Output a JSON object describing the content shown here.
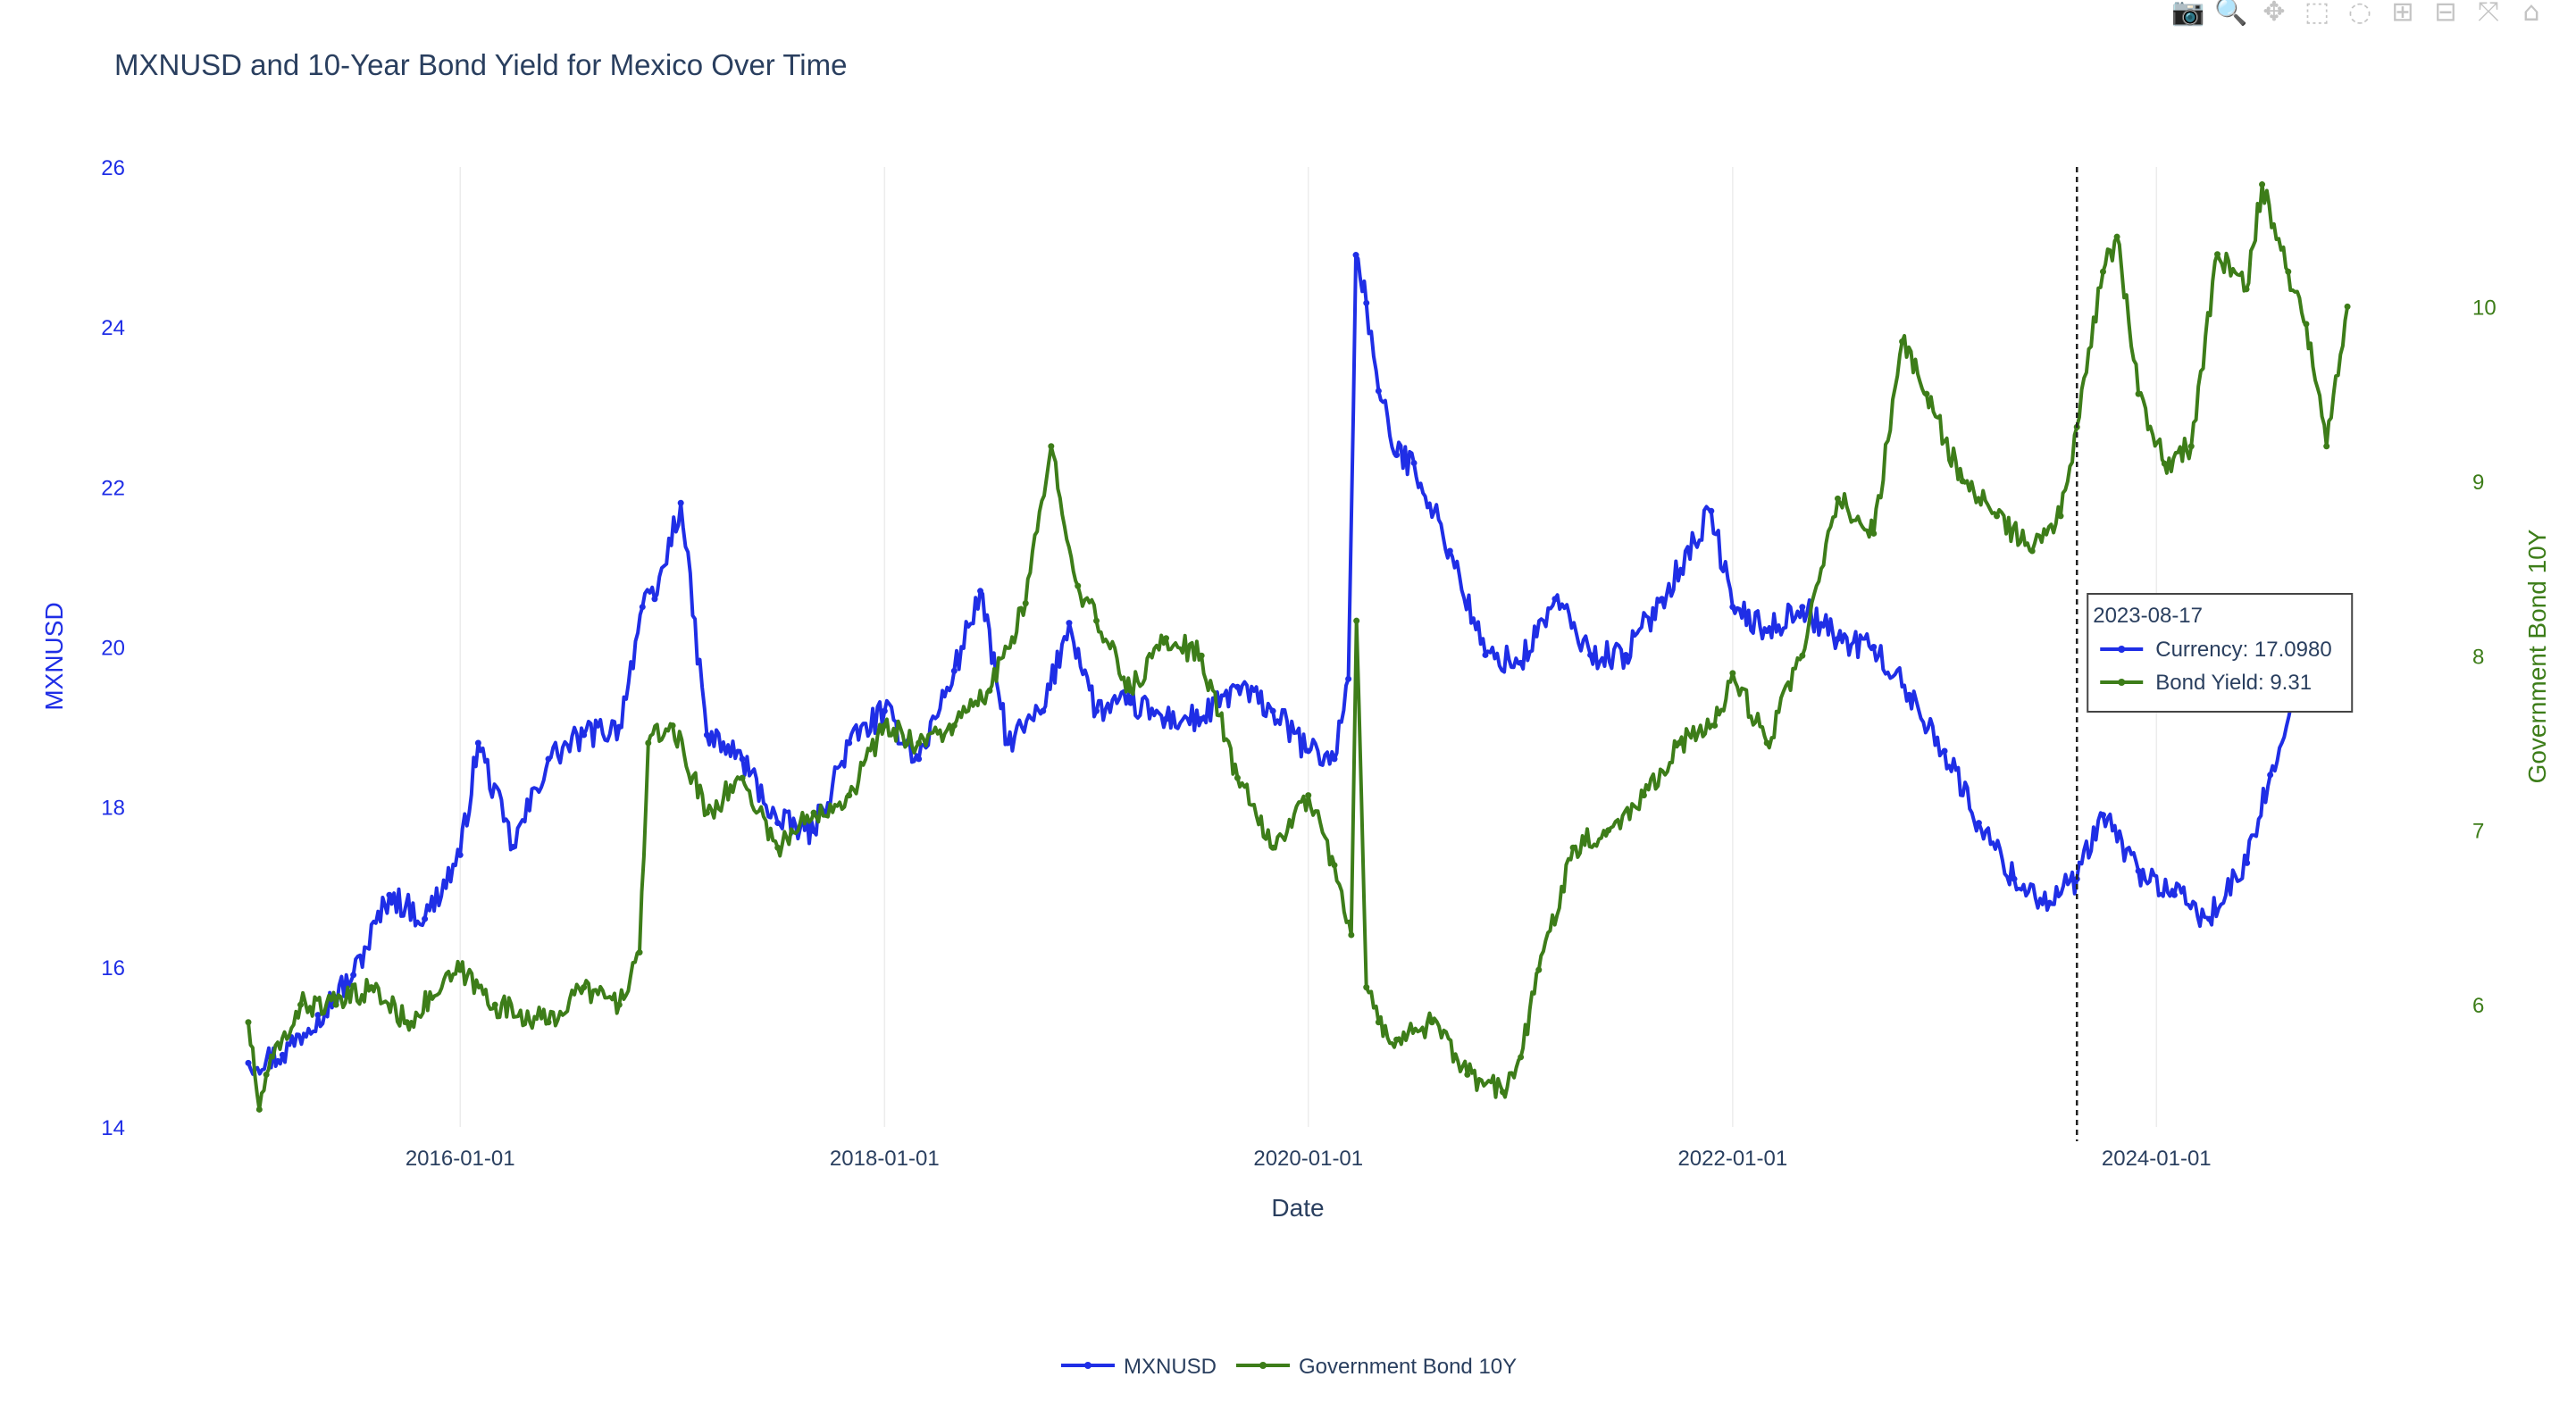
{
  "modebar": [
    {
      "icon": "camera-icon",
      "glyph": "📷"
    },
    {
      "icon": "zoom-icon",
      "glyph": "🔍"
    },
    {
      "icon": "pan-icon",
      "glyph": "✥"
    },
    {
      "icon": "box-select-icon",
      "glyph": "⬚"
    },
    {
      "icon": "lasso-select-icon",
      "glyph": "◌"
    },
    {
      "icon": "zoom-in-icon",
      "glyph": "⊞"
    },
    {
      "icon": "zoom-out-icon",
      "glyph": "⊟"
    },
    {
      "icon": "autoscale-icon",
      "glyph": "⤧"
    },
    {
      "icon": "reset-axes-icon",
      "glyph": "⌂"
    }
  ],
  "chart_data": {
    "type": "line",
    "title": "MXNUSD and 10-Year Bond Yield for Mexico Over Time",
    "xlabel": "Date",
    "ylabel": "MXNUSD",
    "y2label": "Government Bond 10Y",
    "x_ticks": [
      "2016-01-01",
      "2018-01-01",
      "2020-01-01",
      "2022-01-01",
      "2024-01-01"
    ],
    "xlim": [
      "2015-01-01",
      "2024-12-01"
    ],
    "ylim": [
      14,
      26
    ],
    "y_ticks": [
      14,
      16,
      18,
      20,
      22,
      24,
      26
    ],
    "y2lim": [
      5.3,
      10.8
    ],
    "y2_ticks": [
      6,
      7,
      8,
      9,
      10
    ],
    "grid": true,
    "legend_position": "bottom-center",
    "series": [
      {
        "name": "MXNUSD",
        "axis": "y",
        "color": "#1f2ee6",
        "x": [
          "2015-01-01",
          "2015-03-01",
          "2015-05-01",
          "2015-07-01",
          "2015-09-01",
          "2015-11-01",
          "2016-01-01",
          "2016-02-01",
          "2016-04-01",
          "2016-06-01",
          "2016-08-01",
          "2016-10-01",
          "2016-11-10",
          "2016-12-01",
          "2017-01-15",
          "2017-03-01",
          "2017-05-01",
          "2017-07-01",
          "2017-09-01",
          "2017-11-01",
          "2018-01-01",
          "2018-03-01",
          "2018-05-01",
          "2018-06-15",
          "2018-08-01",
          "2018-10-01",
          "2018-11-15",
          "2019-01-01",
          "2019-03-01",
          "2019-05-01",
          "2019-07-01",
          "2019-09-01",
          "2019-11-01",
          "2020-01-01",
          "2020-02-15",
          "2020-03-10",
          "2020-03-23",
          "2020-04-10",
          "2020-05-01",
          "2020-06-01",
          "2020-07-01",
          "2020-09-01",
          "2020-11-01",
          "2021-01-01",
          "2021-03-01",
          "2021-05-01",
          "2021-07-01",
          "2021-09-01",
          "2021-11-25",
          "2022-01-01",
          "2022-03-01",
          "2022-05-01",
          "2022-07-01",
          "2022-09-01",
          "2022-11-01",
          "2023-01-01",
          "2023-03-01",
          "2023-05-01",
          "2023-07-01",
          "2023-08-17",
          "2023-10-01",
          "2023-12-01",
          "2024-02-01",
          "2024-04-01",
          "2024-06-05",
          "2024-07-15",
          "2024-09-01",
          "2024-10-15",
          "2024-11-15"
        ],
        "y": [
          14.8,
          14.9,
          15.4,
          15.9,
          16.9,
          16.6,
          17.4,
          18.8,
          17.5,
          18.6,
          18.9,
          19.0,
          20.5,
          20.6,
          21.8,
          18.9,
          18.6,
          17.8,
          17.7,
          18.8,
          19.2,
          18.6,
          19.7,
          20.7,
          18.8,
          19.2,
          20.3,
          19.2,
          19.3,
          19.1,
          19.1,
          19.5,
          19.2,
          18.7,
          18.6,
          19.6,
          24.9,
          24.3,
          23.2,
          22.4,
          22.3,
          21.2,
          19.9,
          19.8,
          20.6,
          19.9,
          19.9,
          20.6,
          21.7,
          20.5,
          20.2,
          20.5,
          20.1,
          20.0,
          19.4,
          18.7,
          17.8,
          17.1,
          16.8,
          17.1,
          17.9,
          17.2,
          16.9,
          16.6,
          17.3,
          18.4,
          19.6,
          19.9,
          20.1
        ]
      },
      {
        "name": "Government Bond 10Y",
        "axis": "y2",
        "color": "#3d7d19",
        "x": [
          "2015-01-01",
          "2015-01-20",
          "2015-02-01",
          "2015-04-01",
          "2015-06-01",
          "2015-08-01",
          "2015-10-01",
          "2016-01-01",
          "2016-03-01",
          "2016-06-01",
          "2016-08-01",
          "2016-10-01",
          "2016-11-05",
          "2016-11-20",
          "2017-01-01",
          "2017-03-01",
          "2017-05-01",
          "2017-07-01",
          "2017-09-01",
          "2017-11-01",
          "2018-01-01",
          "2018-03-01",
          "2018-05-01",
          "2018-07-01",
          "2018-09-01",
          "2018-10-15",
          "2018-11-30",
          "2019-01-01",
          "2019-03-01",
          "2019-05-01",
          "2019-07-01",
          "2019-09-01",
          "2019-11-01",
          "2020-01-01",
          "2020-02-15",
          "2020-03-15",
          "2020-03-24",
          "2020-04-10",
          "2020-05-01",
          "2020-06-01",
          "2020-08-01",
          "2020-10-01",
          "2020-12-01",
          "2021-01-01",
          "2021-02-01",
          "2021-04-01",
          "2021-06-01",
          "2021-08-01",
          "2021-10-01",
          "2021-12-01",
          "2022-01-01",
          "2022-03-01",
          "2022-05-01",
          "2022-07-01",
          "2022-09-01",
          "2022-10-20",
          "2022-12-01",
          "2023-02-01",
          "2023-04-01",
          "2023-06-01",
          "2023-07-20",
          "2023-08-17",
          "2023-10-01",
          "2023-10-25",
          "2023-12-01",
          "2024-01-15",
          "2024-03-01",
          "2024-04-15",
          "2024-06-04",
          "2024-07-01",
          "2024-08-15",
          "2024-09-15",
          "2024-10-20",
          "2024-11-25"
        ],
        "y": [
          5.9,
          5.4,
          5.6,
          6.0,
          6.0,
          6.1,
          5.9,
          6.2,
          6.0,
          5.9,
          6.1,
          6.0,
          6.3,
          7.5,
          7.6,
          7.1,
          7.3,
          6.9,
          7.1,
          7.2,
          7.6,
          7.5,
          7.6,
          7.8,
          8.3,
          9.2,
          8.4,
          8.2,
          7.8,
          8.1,
          8.0,
          7.3,
          6.9,
          7.2,
          6.8,
          6.4,
          8.2,
          6.1,
          5.9,
          5.8,
          5.9,
          5.6,
          5.5,
          5.7,
          6.2,
          6.9,
          7.0,
          7.2,
          7.5,
          7.6,
          7.9,
          7.5,
          8.0,
          8.9,
          8.7,
          9.8,
          9.5,
          9.0,
          8.8,
          8.6,
          8.8,
          9.31,
          10.2,
          10.4,
          9.5,
          9.1,
          9.2,
          10.3,
          10.1,
          10.7,
          10.2,
          9.9,
          9.2,
          10.0
        ]
      }
    ],
    "hover": {
      "date": "2023-08-17",
      "entries": [
        {
          "label": "Currency: 17.0980",
          "series": 0
        },
        {
          "label": "Bond Yield: 9.31",
          "series": 1
        }
      ]
    }
  }
}
